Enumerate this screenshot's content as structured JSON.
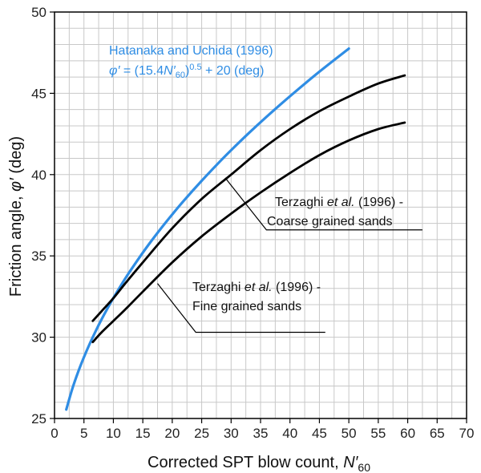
{
  "chart_data": {
    "type": "line",
    "xlabel": "Corrected SPT blow count, ",
    "xlabel_var": "N′",
    "xlabel_sub": "60",
    "ylabel": "Friction angle, ",
    "ylabel_var": "φ′",
    "ylabel_unit": " (deg)",
    "xlim": [
      0,
      70
    ],
    "ylim": [
      25,
      50
    ],
    "xticks": [
      "0",
      "5",
      "10",
      "15",
      "20",
      "25",
      "30",
      "35",
      "40",
      "45",
      "50",
      "55",
      "60",
      "65",
      "70"
    ],
    "yticks": [
      "25",
      "30",
      "35",
      "40",
      "45",
      "50"
    ],
    "grid": true,
    "colors": {
      "blue": "#2f8de4",
      "black": "#000000",
      "grid": "#c8c8c8"
    },
    "series": [
      {
        "name": "Hatanaka and Uchida (1996)",
        "color": "#2f8de4",
        "x": [
          2,
          3,
          4,
          5,
          6,
          7,
          8,
          9,
          10,
          12,
          14,
          16,
          18,
          20,
          22,
          25,
          28,
          30,
          33,
          36,
          40,
          45,
          50
        ],
        "values": [
          25.55,
          26.8,
          27.85,
          28.77,
          29.61,
          30.38,
          31.1,
          31.77,
          32.41,
          33.6,
          34.68,
          35.7,
          36.65,
          37.55,
          38.41,
          39.62,
          40.77,
          41.5,
          42.55,
          43.55,
          44.82,
          46.33,
          47.75
        ]
      },
      {
        "name": "Terzaghi et al. (1996) - Coarse grained sands",
        "color": "#000000",
        "x": [
          6.5,
          8,
          10,
          12,
          15,
          20,
          25,
          30,
          35,
          40,
          45,
          50,
          55,
          59.5
        ],
        "values": [
          31.0,
          31.6,
          32.4,
          33.3,
          34.6,
          36.7,
          38.5,
          40.0,
          41.5,
          42.8,
          43.9,
          44.8,
          45.6,
          46.1
        ]
      },
      {
        "name": "Terzaghi et al. (1996) - Fine grained sands",
        "color": "#000000",
        "x": [
          6.5,
          8,
          10,
          12,
          15,
          20,
          25,
          30,
          35,
          40,
          45,
          50,
          55,
          59.5
        ],
        "values": [
          29.7,
          30.3,
          31.0,
          31.7,
          32.8,
          34.6,
          36.2,
          37.6,
          38.9,
          40.1,
          41.2,
          42.1,
          42.8,
          43.2
        ]
      }
    ],
    "annotations": {
      "hatanaka": {
        "title": "Hatanaka and Uchida (1996)",
        "eq_phi": "φ′",
        "eq_mid": " = (15.4",
        "eq_N": "N′",
        "eq_sub": "60",
        "eq_close": ")",
        "eq_sup": "0.5",
        "eq_tail": " + 20 (deg)"
      },
      "coarse": {
        "line1_pre": "Terzaghi ",
        "line1_etal": "et al.",
        "line1_post": " (1996) -",
        "line2": "Coarse grained sands",
        "pointer_from": [
          29,
          39.8
        ],
        "pointer_elbow": [
          36,
          36.6
        ],
        "pointer_end": [
          62.5,
          36.6
        ]
      },
      "fine": {
        "line1_pre": "Terzaghi ",
        "line1_etal": "et al.",
        "line1_post": " (1996) -",
        "line2": "Fine grained sands",
        "pointer_from": [
          17.5,
          33.3
        ],
        "pointer_elbow": [
          24,
          30.3
        ],
        "pointer_end": [
          46,
          30.3
        ]
      }
    }
  }
}
